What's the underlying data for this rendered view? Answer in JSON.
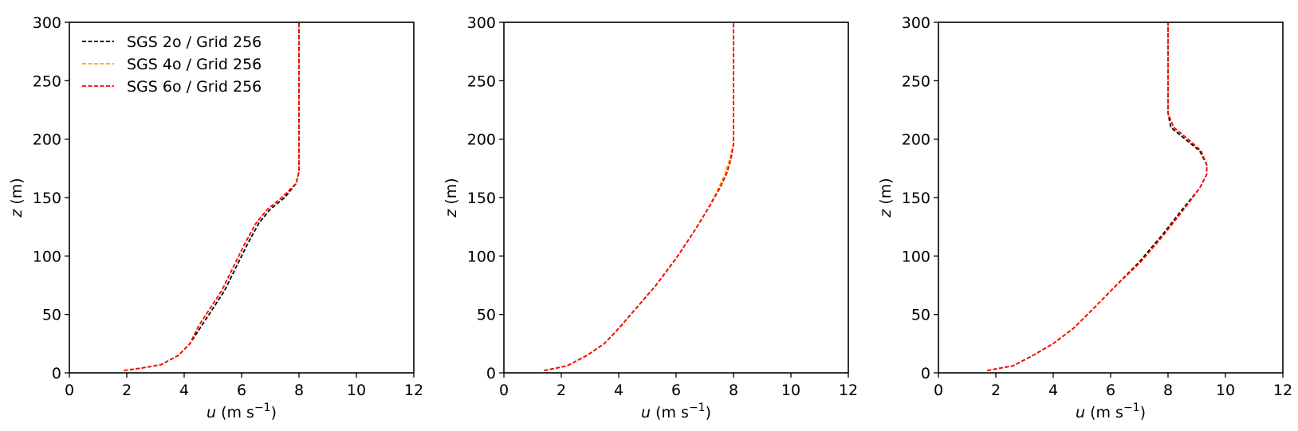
{
  "chart_data": [
    {
      "type": "line",
      "xlabel": {
        "var": "u",
        "unit": "(m s",
        "exp": "−1",
        "close": ")"
      },
      "ylabel": {
        "var": "z",
        "unit": "(m)"
      },
      "xlim": [
        0,
        12
      ],
      "ylim": [
        0,
        300
      ],
      "xticks": [
        "0",
        "2",
        "4",
        "6",
        "8",
        "10",
        "12"
      ],
      "yticks": [
        "0",
        "50",
        "100",
        "150",
        "200",
        "250",
        "300"
      ],
      "grid": false,
      "legend": "top-left",
      "series": [
        {
          "name": "SGS 2o / Grid 256",
          "color": "#000000",
          "x": [
            1.9,
            2.5,
            3.2,
            3.8,
            4.2,
            4.6,
            5.0,
            5.4,
            5.8,
            6.2,
            6.6,
            7.0,
            7.5,
            7.9,
            8.0,
            8.0,
            8.0,
            8.0
          ],
          "y": [
            2,
            4,
            7,
            15,
            25,
            40,
            55,
            70,
            90,
            110,
            128,
            140,
            150,
            162,
            172,
            200,
            250,
            300
          ]
        },
        {
          "name": "SGS 4o / Grid 256",
          "color": "#ffa500",
          "x": [
            1.9,
            2.5,
            3.2,
            3.8,
            4.2,
            4.5,
            4.9,
            5.3,
            5.7,
            6.1,
            6.5,
            6.9,
            7.4,
            7.9,
            8.0,
            8.0,
            8.0,
            8.0
          ],
          "y": [
            2,
            4,
            7,
            15,
            25,
            40,
            55,
            70,
            90,
            110,
            128,
            140,
            150,
            162,
            172,
            200,
            250,
            300
          ]
        },
        {
          "name": "SGS 6o / Grid 256",
          "color": "#ff0000",
          "x": [
            1.9,
            2.5,
            3.2,
            3.8,
            4.2,
            4.5,
            4.9,
            5.3,
            5.7,
            6.1,
            6.5,
            6.9,
            7.4,
            7.9,
            8.0,
            8.0,
            8.0,
            8.0
          ],
          "y": [
            2,
            4,
            7,
            15,
            25,
            40,
            55,
            70,
            90,
            110,
            128,
            140,
            150,
            162,
            172,
            200,
            250,
            300
          ]
        }
      ]
    },
    {
      "type": "line",
      "xlabel": {
        "var": "u",
        "unit": "(m s",
        "exp": "−1",
        "close": ")"
      },
      "ylabel": {
        "var": "z",
        "unit": "(m)"
      },
      "xlim": [
        0,
        12
      ],
      "ylim": [
        0,
        300
      ],
      "xticks": [
        "0",
        "2",
        "4",
        "6",
        "8",
        "10",
        "12"
      ],
      "yticks": [
        "0",
        "50",
        "100",
        "150",
        "200",
        "250",
        "300"
      ],
      "grid": false,
      "series": [
        {
          "color": "#000000",
          "x": [
            1.4,
            2.2,
            2.9,
            3.5,
            4.0,
            4.6,
            5.3,
            6.0,
            6.6,
            7.1,
            7.5,
            7.75,
            7.9,
            8.0,
            8.0,
            8.0,
            8.0
          ],
          "y": [
            2,
            6,
            15,
            25,
            38,
            55,
            75,
            98,
            120,
            140,
            157,
            170,
            182,
            196,
            220,
            260,
            300
          ]
        },
        {
          "color": "#ffa500",
          "x": [
            1.4,
            2.2,
            2.9,
            3.5,
            4.0,
            4.6,
            5.3,
            6.0,
            6.6,
            7.1,
            7.45,
            7.7,
            7.85,
            8.0,
            8.0,
            8.0,
            8.0
          ],
          "y": [
            2,
            6,
            15,
            25,
            38,
            55,
            75,
            98,
            120,
            140,
            157,
            170,
            182,
            196,
            220,
            260,
            300
          ]
        },
        {
          "color": "#ff0000",
          "x": [
            1.4,
            2.2,
            2.9,
            3.5,
            4.0,
            4.6,
            5.3,
            6.0,
            6.6,
            7.1,
            7.5,
            7.75,
            7.9,
            8.0,
            8.0,
            8.0,
            8.0
          ],
          "y": [
            2,
            6,
            15,
            25,
            38,
            55,
            75,
            98,
            120,
            140,
            157,
            170,
            182,
            196,
            220,
            260,
            300
          ]
        }
      ]
    },
    {
      "type": "line",
      "xlabel": {
        "var": "u",
        "unit": "(m s",
        "exp": "−1",
        "close": ")"
      },
      "ylabel": {
        "var": "z",
        "unit": "(m)"
      },
      "xlim": [
        0,
        12
      ],
      "ylim": [
        0,
        300
      ],
      "xticks": [
        "0",
        "2",
        "4",
        "6",
        "8",
        "10",
        "12"
      ],
      "yticks": [
        "0",
        "50",
        "100",
        "150",
        "200",
        "250",
        "300"
      ],
      "grid": false,
      "series": [
        {
          "color": "#000000",
          "x": [
            1.7,
            2.6,
            3.3,
            4.0,
            4.7,
            5.4,
            6.2,
            7.0,
            7.8,
            8.5,
            9.1,
            9.35,
            9.35,
            9.1,
            8.6,
            8.1,
            8.0,
            8.0,
            8.0
          ],
          "y": [
            2,
            6,
            15,
            25,
            38,
            55,
            75,
            95,
            118,
            140,
            158,
            170,
            178,
            190,
            200,
            210,
            222,
            260,
            300
          ]
        },
        {
          "color": "#ffa500",
          "x": [
            1.7,
            2.6,
            3.3,
            4.0,
            4.7,
            5.4,
            6.2,
            7.05,
            7.85,
            8.55,
            9.1,
            9.35,
            9.35,
            9.15,
            8.7,
            8.2,
            8.0,
            8.0,
            8.0
          ],
          "y": [
            2,
            6,
            15,
            25,
            38,
            55,
            75,
            95,
            118,
            140,
            158,
            170,
            178,
            190,
            200,
            210,
            222,
            260,
            300
          ]
        },
        {
          "color": "#ff0000",
          "x": [
            1.7,
            2.6,
            3.3,
            4.0,
            4.7,
            5.4,
            6.2,
            7.05,
            7.85,
            8.55,
            9.1,
            9.35,
            9.35,
            9.15,
            8.7,
            8.2,
            8.0,
            8.0,
            8.0
          ],
          "y": [
            2,
            6,
            15,
            25,
            38,
            55,
            75,
            95,
            118,
            140,
            158,
            170,
            178,
            190,
            200,
            210,
            222,
            260,
            300
          ]
        }
      ]
    }
  ]
}
